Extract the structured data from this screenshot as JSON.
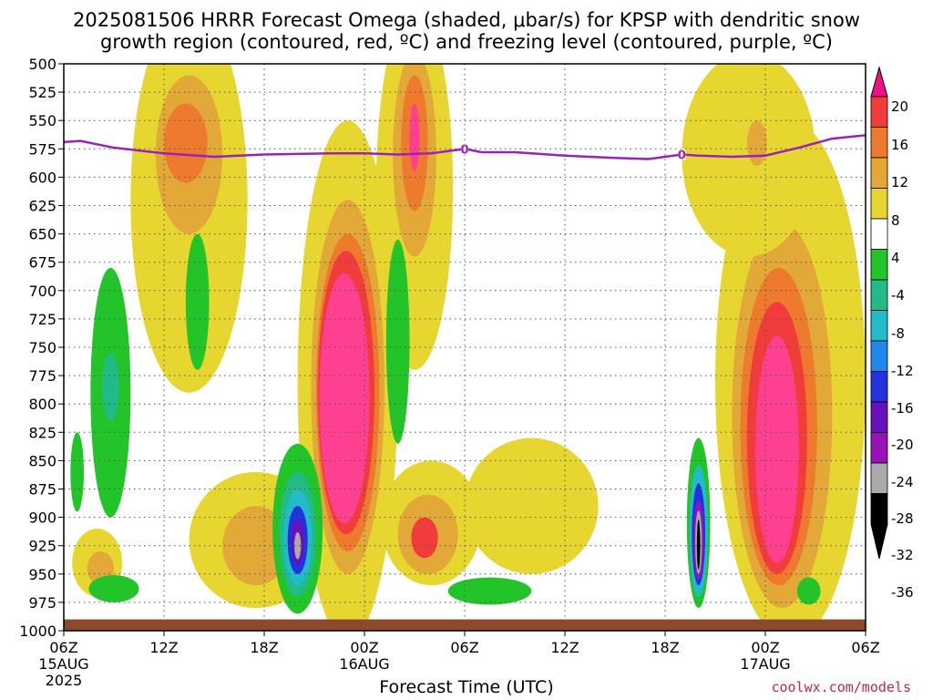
{
  "title_line1": "2025081506 HRRR Forecast Omega (shaded, μbar/s) for KPSP with dendritic snow",
  "title_line2": "growth region (contoured, red, ºC) and freezing level (contoured, purple, ºC)",
  "credit": "coolwx.com/models",
  "chart_data": {
    "type": "heatmap",
    "xlabel": "Forecast Time (UTC)",
    "ylabel": "",
    "y_axis": "pressure (mb), inverted",
    "y_ticks": [
      500,
      525,
      550,
      575,
      600,
      625,
      650,
      675,
      700,
      725,
      750,
      775,
      800,
      825,
      850,
      875,
      900,
      925,
      950,
      975,
      1000
    ],
    "ylim": [
      1000,
      500
    ],
    "x_ticks": [
      {
        "label": "06Z",
        "sub": "15AUG",
        "sub2": "2025",
        "hour": 0
      },
      {
        "label": "12Z",
        "sub": "",
        "sub2": "",
        "hour": 6
      },
      {
        "label": "18Z",
        "sub": "",
        "sub2": "",
        "hour": 12
      },
      {
        "label": "00Z",
        "sub": "16AUG",
        "sub2": "",
        "hour": 18
      },
      {
        "label": "06Z",
        "sub": "",
        "sub2": "",
        "hour": 24
      },
      {
        "label": "12Z",
        "sub": "",
        "sub2": "",
        "hour": 30
      },
      {
        "label": "18Z",
        "sub": "",
        "sub2": "",
        "hour": 36
      },
      {
        "label": "00Z",
        "sub": "17AUG",
        "sub2": "",
        "hour": 42
      },
      {
        "label": "06Z",
        "sub": "",
        "sub2": "",
        "hour": 48
      }
    ],
    "xlim_hours": [
      0,
      48
    ],
    "grid": true,
    "colorbar": {
      "labels": [
        "20",
        "16",
        "12",
        "8",
        "4",
        "-4",
        "-8",
        "-12",
        "-16",
        "-20",
        "-24",
        "-28",
        "-32",
        "-36"
      ],
      "colors": [
        "#ff3f8f",
        "#f23c3c",
        "#ee7a2e",
        "#e3a938",
        "#e8d630",
        "#ffffff",
        "#22c42a",
        "#22bb88",
        "#22bbcc",
        "#2288ee",
        "#2233dd",
        "#6611bb",
        "#9911bb",
        "#aaaaaa",
        "#000000"
      ],
      "top_arrow_color": "#ee1188",
      "bottom_arrow_color": "#000000"
    },
    "freezing_level": {
      "color": "#9922bb",
      "label": "0",
      "points": [
        [
          0,
          569
        ],
        [
          1,
          568
        ],
        [
          3,
          574
        ],
        [
          6,
          579
        ],
        [
          9,
          582
        ],
        [
          12,
          580
        ],
        [
          16,
          579
        ],
        [
          18,
          579
        ],
        [
          20,
          580
        ],
        [
          22,
          579
        ],
        [
          24,
          575
        ],
        [
          25,
          578
        ],
        [
          27,
          578
        ],
        [
          30,
          581
        ],
        [
          33,
          583
        ],
        [
          35,
          584
        ],
        [
          37,
          580
        ],
        [
          38,
          581
        ],
        [
          40,
          582
        ],
        [
          42,
          581
        ],
        [
          44,
          574
        ],
        [
          46,
          566
        ],
        [
          48,
          563
        ]
      ],
      "label_hours": [
        24,
        37
      ]
    },
    "omega_regions": [
      {
        "level": "4",
        "color": "#e8d630",
        "center": [
          7.5,
          620
        ],
        "radius": [
          3.5,
          170
        ]
      },
      {
        "level": "8",
        "color": "#e3a938",
        "center": [
          7.5,
          580
        ],
        "radius": [
          2.0,
          70
        ]
      },
      {
        "level": "12",
        "color": "#ee7a2e",
        "center": [
          7.3,
          570
        ],
        "radius": [
          1.3,
          35
        ]
      },
      {
        "level": "4",
        "color": "#e8d630",
        "center": [
          21.0,
          610
        ],
        "radius": [
          2.3,
          160
        ]
      },
      {
        "level": "8",
        "color": "#e3a938",
        "center": [
          21.0,
          580
        ],
        "radius": [
          1.3,
          90
        ]
      },
      {
        "level": "12",
        "color": "#ee7a2e",
        "center": [
          21.0,
          570
        ],
        "radius": [
          0.8,
          60
        ]
      },
      {
        "level": "20",
        "color": "#ff3f8f",
        "center": [
          21.0,
          565
        ],
        "radius": [
          0.3,
          30
        ]
      },
      {
        "level": "4",
        "color": "#e8d630",
        "center": [
          17.0,
          780
        ],
        "radius": [
          3.0,
          230
        ]
      },
      {
        "level": "8",
        "color": "#e3a938",
        "center": [
          17.0,
          785
        ],
        "radius": [
          2.2,
          165
        ]
      },
      {
        "level": "12",
        "color": "#ee7a2e",
        "center": [
          17.0,
          790
        ],
        "radius": [
          1.9,
          140
        ]
      },
      {
        "level": "16",
        "color": "#f23c3c",
        "center": [
          16.9,
          790
        ],
        "radius": [
          1.7,
          125
        ]
      },
      {
        "level": "20",
        "color": "#ff3f8f",
        "center": [
          16.8,
          795
        ],
        "radius": [
          1.5,
          110
        ]
      },
      {
        "level": "4",
        "color": "#e8d630",
        "center": [
          22.0,
          905
        ],
        "radius": [
          3.0,
          55
        ]
      },
      {
        "level": "8",
        "color": "#e3a938",
        "center": [
          21.8,
          915
        ],
        "radius": [
          1.8,
          35
        ]
      },
      {
        "level": "16",
        "color": "#f23c3c",
        "center": [
          21.6,
          918
        ],
        "radius": [
          0.8,
          18
        ]
      },
      {
        "level": "4",
        "color": "#e8d630",
        "center": [
          11.5,
          920
        ],
        "radius": [
          4.0,
          60
        ]
      },
      {
        "level": "8",
        "color": "#e3a938",
        "center": [
          11.5,
          925
        ],
        "radius": [
          2.0,
          35
        ]
      },
      {
        "level": "4",
        "color": "#e8d630",
        "center": [
          28.0,
          890
        ],
        "radius": [
          4.0,
          60
        ]
      },
      {
        "level": "4",
        "color": "#e8d630",
        "center": [
          43.5,
          780
        ],
        "radius": [
          4.5,
          230
        ]
      },
      {
        "level": "8",
        "color": "#e3a938",
        "center": [
          43.0,
          810
        ],
        "radius": [
          3.0,
          170
        ]
      },
      {
        "level": "12",
        "color": "#ee7a2e",
        "center": [
          42.8,
          820
        ],
        "radius": [
          2.3,
          140
        ]
      },
      {
        "level": "16",
        "color": "#f23c3c",
        "center": [
          42.7,
          830
        ],
        "radius": [
          1.8,
          120
        ]
      },
      {
        "level": "20",
        "color": "#ff3f8f",
        "center": [
          42.7,
          840
        ],
        "radius": [
          1.3,
          100
        ]
      },
      {
        "level": "4",
        "color": "#e8d630",
        "center": [
          41.0,
          580
        ],
        "radius": [
          4.0,
          90
        ]
      },
      {
        "level": "8",
        "color": "#e3a938",
        "center": [
          41.5,
          570
        ],
        "radius": [
          0.6,
          20
        ]
      },
      {
        "level": "4",
        "color": "#e8d630",
        "center": [
          2.0,
          940
        ],
        "radius": [
          1.5,
          30
        ]
      },
      {
        "level": "8",
        "color": "#e3a938",
        "center": [
          2.2,
          945
        ],
        "radius": [
          0.8,
          15
        ]
      },
      {
        "level": "-4",
        "color": "#22c42a",
        "center": [
          2.8,
          790
        ],
        "radius": [
          1.2,
          110
        ]
      },
      {
        "level": "-8",
        "color": "#22bb88",
        "center": [
          2.8,
          785
        ],
        "radius": [
          0.5,
          30
        ]
      },
      {
        "level": "-4",
        "color": "#22c42a",
        "center": [
          8.0,
          710
        ],
        "radius": [
          0.7,
          60
        ]
      },
      {
        "level": "-4",
        "color": "#22c42a",
        "center": [
          0.8,
          860
        ],
        "radius": [
          0.4,
          35
        ]
      },
      {
        "level": "-4",
        "color": "#22c42a",
        "center": [
          3.0,
          963
        ],
        "radius": [
          1.5,
          12
        ]
      },
      {
        "level": "-4",
        "color": "#22c42a",
        "center": [
          20.0,
          745
        ],
        "radius": [
          0.7,
          90
        ]
      },
      {
        "level": "-4",
        "color": "#22c42a",
        "center": [
          25.5,
          965
        ],
        "radius": [
          2.5,
          12
        ]
      },
      {
        "level": "-4",
        "color": "#22c42a",
        "center": [
          44.6,
          965
        ],
        "radius": [
          0.7,
          12
        ]
      },
      {
        "level": "-4",
        "color": "#22c42a",
        "center": [
          14.0,
          910
        ],
        "radius": [
          1.5,
          75
        ]
      },
      {
        "level": "-8",
        "color": "#22bb88",
        "center": [
          14.0,
          915
        ],
        "radius": [
          1.1,
          55
        ]
      },
      {
        "level": "-12",
        "color": "#22bbcc",
        "center": [
          14.0,
          918
        ],
        "radius": [
          0.85,
          42
        ]
      },
      {
        "level": "-20",
        "color": "#2233dd",
        "center": [
          14.0,
          920
        ],
        "radius": [
          0.6,
          30
        ]
      },
      {
        "level": "-28",
        "color": "#6611bb",
        "center": [
          14.0,
          922
        ],
        "radius": [
          0.4,
          20
        ]
      },
      {
        "level": "-32",
        "color": "#aaaaaa",
        "center": [
          14.0,
          925
        ],
        "radius": [
          0.2,
          12
        ]
      },
      {
        "level": "-4",
        "color": "#22c42a",
        "center": [
          38.0,
          905
        ],
        "radius": [
          0.7,
          75
        ]
      },
      {
        "level": "-12",
        "color": "#22bbcc",
        "center": [
          38.0,
          912
        ],
        "radius": [
          0.55,
          58
        ]
      },
      {
        "level": "-20",
        "color": "#2233dd",
        "center": [
          38.0,
          915
        ],
        "radius": [
          0.4,
          45
        ]
      },
      {
        "level": "-28",
        "color": "#9911bb",
        "center": [
          38.0,
          920
        ],
        "radius": [
          0.3,
          35
        ]
      },
      {
        "level": "-32",
        "color": "#aaaaaa",
        "center": [
          38.0,
          922
        ],
        "radius": [
          0.2,
          28
        ]
      },
      {
        "level": "-36",
        "color": "#000000",
        "center": [
          38.0,
          924
        ],
        "radius": [
          0.1,
          22
        ]
      }
    ],
    "terrain_color": "#8b4a2b"
  }
}
